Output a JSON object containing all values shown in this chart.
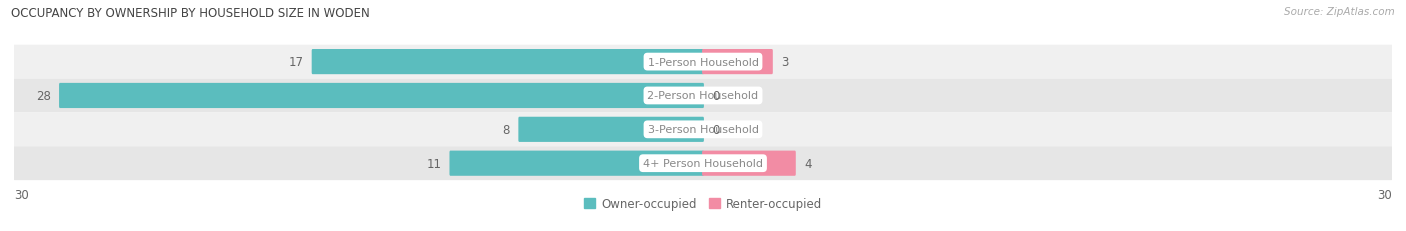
{
  "title": "OCCUPANCY BY OWNERSHIP BY HOUSEHOLD SIZE IN WODEN",
  "source": "Source: ZipAtlas.com",
  "categories": [
    "1-Person Household",
    "2-Person Household",
    "3-Person Household",
    "4+ Person Household"
  ],
  "owner_values": [
    17,
    28,
    8,
    11
  ],
  "renter_values": [
    3,
    0,
    0,
    4
  ],
  "owner_color": "#5BBDBE",
  "renter_color": "#F28CA4",
  "row_bg_colors": [
    "#F0F0F0",
    "#E6E6E6",
    "#F0F0F0",
    "#E6E6E6"
  ],
  "label_color": "#666666",
  "title_color": "#444444",
  "axis_max": 30,
  "legend_owner": "Owner-occupied",
  "legend_renter": "Renter-occupied",
  "center_label_color": "#888888",
  "value_inside_color": "#FFFFFF",
  "value_outside_color": "#666666"
}
